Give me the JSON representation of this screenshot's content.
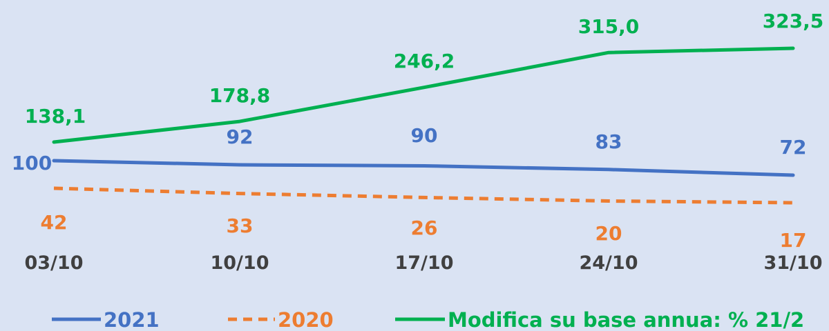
{
  "chart_data": {
    "type": "line",
    "categories": [
      "03/10",
      "10/10",
      "17/10",
      "24/10",
      "31/10"
    ],
    "series": [
      {
        "name": "2021",
        "color": "#4472c4",
        "style": "solid",
        "values": [
          100,
          92,
          90,
          83,
          72
        ],
        "labels": [
          "100",
          "92",
          "90",
          "83",
          "72"
        ]
      },
      {
        "name": "2020",
        "color": "#ed7d31",
        "style": "dashed",
        "values": [
          42,
          33,
          26,
          20,
          17
        ],
        "labels": [
          "42",
          "33",
          "26",
          "20",
          "17"
        ]
      },
      {
        "name": "Modifica su base annua: % 21/2",
        "color": "#00b050",
        "style": "solid",
        "values": [
          138.1,
          178.8,
          246.2,
          315.0,
          323.5
        ],
        "labels": [
          "138,1",
          "178,8",
          "246,2",
          "315,0",
          "323,5"
        ]
      }
    ],
    "grid": false,
    "legend_position": "bottom"
  }
}
